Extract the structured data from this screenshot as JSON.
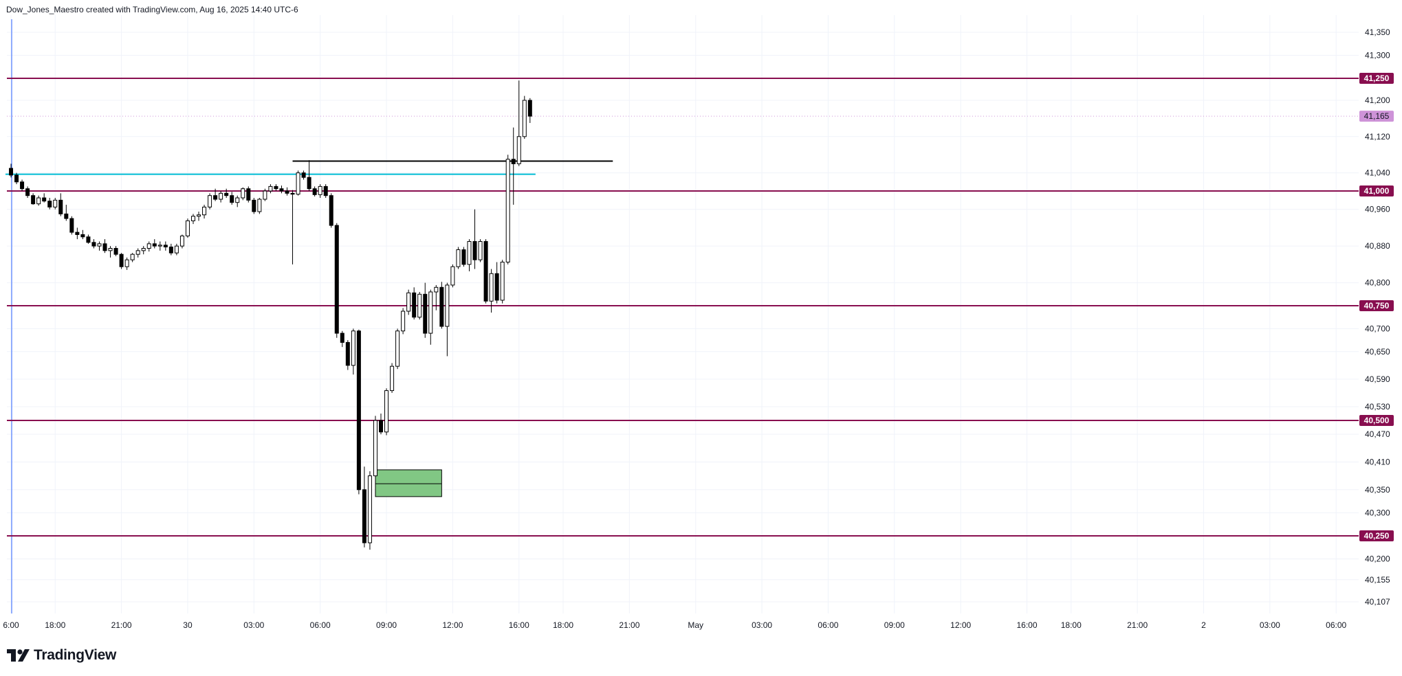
{
  "header": {
    "attribution": "Dow_Jones_Maestro created with TradingView.com, Aug 16, 2025 14:40 UTC-6"
  },
  "logo": {
    "text": "TradingView",
    "icon": "tradingview-logo-icon"
  },
  "colors": {
    "level_line": "#880e4f",
    "current_price": "#ce93d8",
    "cyan_line": "#00bcd4",
    "zone_fill": "#81c784",
    "candle_up": "#ffffff",
    "candle_down": "#000000"
  },
  "chart_data": {
    "type": "candlestick",
    "y_ticks": [
      41350,
      41300,
      41200,
      41120,
      41040,
      40960,
      40880,
      40800,
      40700,
      40650,
      40590,
      40530,
      40470,
      40410,
      40350,
      40300,
      40200,
      40155,
      40107
    ],
    "y_tick_labels": [
      "41,350",
      "41,300",
      "41,200",
      "41,120",
      "41,040",
      "40,960",
      "40,880",
      "40,800",
      "40,700",
      "40,650",
      "40,590",
      "40,530",
      "40,470",
      "40,410",
      "40,350",
      "40,300",
      "40,200",
      "40,155",
      "40,107"
    ],
    "x_ticks": [
      {
        "label": "6:00",
        "slot": 0
      },
      {
        "label": "18:00",
        "slot": 8
      },
      {
        "label": "21:00",
        "slot": 20
      },
      {
        "label": "30",
        "slot": 32
      },
      {
        "label": "03:00",
        "slot": 44
      },
      {
        "label": "06:00",
        "slot": 56
      },
      {
        "label": "09:00",
        "slot": 68
      },
      {
        "label": "12:00",
        "slot": 80
      },
      {
        "label": "16:00",
        "slot": 92
      },
      {
        "label": "18:00",
        "slot": 100
      },
      {
        "label": "21:00",
        "slot": 112
      },
      {
        "label": "May",
        "slot": 124
      },
      {
        "label": "03:00",
        "slot": 136
      },
      {
        "label": "06:00",
        "slot": 148
      },
      {
        "label": "09:00",
        "slot": 160
      },
      {
        "label": "12:00",
        "slot": 172
      },
      {
        "label": "16:00",
        "slot": 184
      },
      {
        "label": "18:00",
        "slot": 192
      },
      {
        "label": "21:00",
        "slot": 204
      },
      {
        "label": "2",
        "slot": 216
      },
      {
        "label": "03:00",
        "slot": 228
      },
      {
        "label": "06:00",
        "slot": 240
      }
    ],
    "levels": [
      {
        "price": 41250,
        "label": "41,250"
      },
      {
        "price": 41000,
        "label": "41,000"
      },
      {
        "price": 40750,
        "label": "40,750"
      },
      {
        "price": 40500,
        "label": "40,500"
      },
      {
        "price": 40250,
        "label": "40,250"
      }
    ],
    "current_price": {
      "price": 41165,
      "label": "41,165"
    },
    "cyan_line": {
      "price": 41037,
      "from_slot": -1,
      "to_slot": 95
    },
    "black_line": {
      "price": 41066,
      "from_slot": 51,
      "to_slot": 109
    },
    "zone": {
      "top": 40393,
      "mid": 40363,
      "bottom": 40335,
      "from_slot": 66,
      "to_slot": 78
    },
    "candles": [
      [
        41050,
        41060,
        41030,
        41035
      ],
      [
        41035,
        41040,
        41015,
        41020
      ],
      [
        41020,
        41025,
        41000,
        41005
      ],
      [
        41005,
        41010,
        40985,
        40990
      ],
      [
        40990,
        40995,
        40970,
        40972
      ],
      [
        40972,
        40990,
        40968,
        40985
      ],
      [
        40985,
        40995,
        40975,
        40978
      ],
      [
        40978,
        40985,
        40960,
        40965
      ],
      [
        40965,
        40985,
        40960,
        40980
      ],
      [
        40980,
        40995,
        40945,
        40950
      ],
      [
        40950,
        40970,
        40935,
        40940
      ],
      [
        40940,
        40945,
        40905,
        40910
      ],
      [
        40910,
        40920,
        40895,
        40905
      ],
      [
        40905,
        40915,
        40895,
        40900
      ],
      [
        40900,
        40905,
        40885,
        40888
      ],
      [
        40888,
        40895,
        40875,
        40880
      ],
      [
        40880,
        40890,
        40870,
        40885
      ],
      [
        40885,
        40895,
        40865,
        40870
      ],
      [
        40870,
        40880,
        40855,
        40875
      ],
      [
        40875,
        40880,
        40858,
        40862
      ],
      [
        40862,
        40865,
        40830,
        40835
      ],
      [
        40835,
        40855,
        40828,
        40850
      ],
      [
        40850,
        40865,
        40845,
        40862
      ],
      [
        40862,
        40875,
        40855,
        40870
      ],
      [
        40870,
        40880,
        40862,
        40875
      ],
      [
        40875,
        40890,
        40868,
        40885
      ],
      [
        40885,
        40895,
        40875,
        40880
      ],
      [
        40880,
        40890,
        40870,
        40882
      ],
      [
        40882,
        40890,
        40870,
        40878
      ],
      [
        40878,
        40885,
        40860,
        40865
      ],
      [
        40865,
        40885,
        40860,
        40880
      ],
      [
        40880,
        40905,
        40875,
        40902
      ],
      [
        40902,
        40940,
        40898,
        40935
      ],
      [
        40935,
        40950,
        40928,
        40945
      ],
      [
        40945,
        40955,
        40935,
        40948
      ],
      [
        40948,
        40970,
        40940,
        40965
      ],
      [
        40965,
        40995,
        40960,
        40990
      ],
      [
        40990,
        41005,
        40978,
        40982
      ],
      [
        40982,
        41000,
        40975,
        40995
      ],
      [
        40995,
        41005,
        40985,
        40990
      ],
      [
        40990,
        40998,
        40970,
        40975
      ],
      [
        40975,
        40990,
        40965,
        40985
      ],
      [
        40985,
        41008,
        40980,
        41005
      ],
      [
        41005,
        41010,
        40975,
        40980
      ],
      [
        40980,
        40985,
        40950,
        40955
      ],
      [
        40955,
        40985,
        40950,
        40982
      ],
      [
        40982,
        41005,
        40978,
        41000
      ],
      [
        41000,
        41015,
        40995,
        41010
      ],
      [
        41010,
        41015,
        41000,
        41005
      ],
      [
        41005,
        41012,
        40995,
        41000
      ],
      [
        41000,
        41008,
        40990,
        40995
      ],
      [
        40995,
        41002,
        40840,
        40993
      ],
      [
        40993,
        41045,
        40990,
        41040
      ],
      [
        41040,
        41045,
        41025,
        41030
      ],
      [
        41030,
        41068,
        41000,
        41005
      ],
      [
        41005,
        41010,
        40988,
        40992
      ],
      [
        40992,
        41015,
        40985,
        41010
      ],
      [
        41010,
        41015,
        40985,
        40990
      ],
      [
        40990,
        40995,
        40920,
        40925
      ],
      [
        40925,
        40930,
        40680,
        40690
      ],
      [
        40690,
        40695,
        40660,
        40670
      ],
      [
        40670,
        40675,
        40610,
        40620
      ],
      [
        40620,
        40700,
        40600,
        40695
      ],
      [
        40695,
        40698,
        40340,
        40350
      ],
      [
        40350,
        40400,
        40225,
        40235
      ],
      [
        40235,
        40390,
        40220,
        40380
      ],
      [
        40380,
        40510,
        40375,
        40500
      ],
      [
        40500,
        40515,
        40470,
        40475
      ],
      [
        40475,
        40570,
        40468,
        40565
      ],
      [
        40565,
        40625,
        40560,
        40618
      ],
      [
        40618,
        40700,
        40612,
        40695
      ],
      [
        40695,
        40745,
        40688,
        40738
      ],
      [
        40738,
        40785,
        40730,
        40778
      ],
      [
        40778,
        40790,
        40720,
        40725
      ],
      [
        40725,
        40780,
        40720,
        40775
      ],
      [
        40775,
        40800,
        40680,
        40690
      ],
      [
        40690,
        40785,
        40665,
        40780
      ],
      [
        40780,
        40795,
        40740,
        40790
      ],
      [
        40790,
        40802,
        40700,
        40705
      ],
      [
        40705,
        40800,
        40640,
        40795
      ],
      [
        40795,
        40840,
        40790,
        40835
      ],
      [
        40835,
        40878,
        40830,
        40872
      ],
      [
        40872,
        40878,
        40835,
        40840
      ],
      [
        40840,
        40895,
        40825,
        40890
      ],
      [
        40890,
        40960,
        40830,
        40850
      ],
      [
        40850,
        40895,
        40845,
        40890
      ],
      [
        40890,
        40895,
        40755,
        40760
      ],
      [
        40760,
        40830,
        40735,
        40820
      ],
      [
        40820,
        40845,
        40755,
        40762
      ],
      [
        40762,
        40850,
        40755,
        40845
      ],
      [
        40845,
        41080,
        40840,
        41070
      ],
      [
        41070,
        41140,
        40970,
        41060
      ],
      [
        41060,
        41245,
        41055,
        41120
      ],
      [
        41120,
        41210,
        41115,
        41200
      ],
      [
        41200,
        41205,
        41150,
        41165
      ]
    ]
  }
}
